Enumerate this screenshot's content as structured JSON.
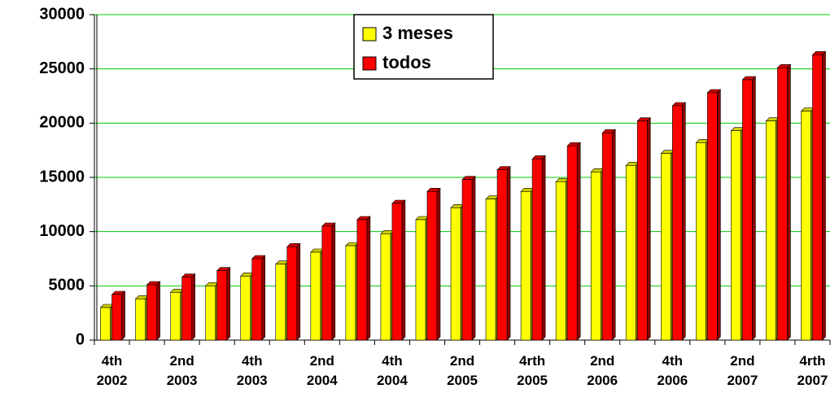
{
  "chart_data": {
    "type": "bar3d",
    "categories": [
      "4th\n2002",
      null,
      "2nd\n2003",
      null,
      "4th\n2003",
      null,
      "2nd\n2004",
      null,
      "4th\n2004",
      null,
      "2nd\n2005",
      null,
      "4rth\n2005",
      null,
      "2nd\n2006",
      null,
      "4th\n2006",
      null,
      "2nd\n2007",
      null,
      "4rth\n2007"
    ],
    "series": [
      {
        "name": "3 meses",
        "color": "#ffff00",
        "values": [
          3000,
          3800,
          4400,
          5000,
          5900,
          7000,
          8100,
          8700,
          9800,
          11100,
          12200,
          13000,
          13700,
          14600,
          15500,
          16100,
          17200,
          18200,
          19300,
          20200,
          21100
        ]
      },
      {
        "name": "todos",
        "color": "#ff0000",
        "values": [
          4200,
          5100,
          5800,
          6400,
          7500,
          8600,
          10500,
          11100,
          12600,
          13700,
          14800,
          15700,
          16700,
          17900,
          19100,
          20200,
          21600,
          22800,
          24000,
          25100,
          26300
        ]
      }
    ],
    "ylim": [
      0,
      30000
    ],
    "yticks": [
      0,
      5000,
      10000,
      15000,
      20000,
      25000,
      30000
    ],
    "grid": true,
    "grid_color": "#00cc00",
    "legend": "top"
  }
}
